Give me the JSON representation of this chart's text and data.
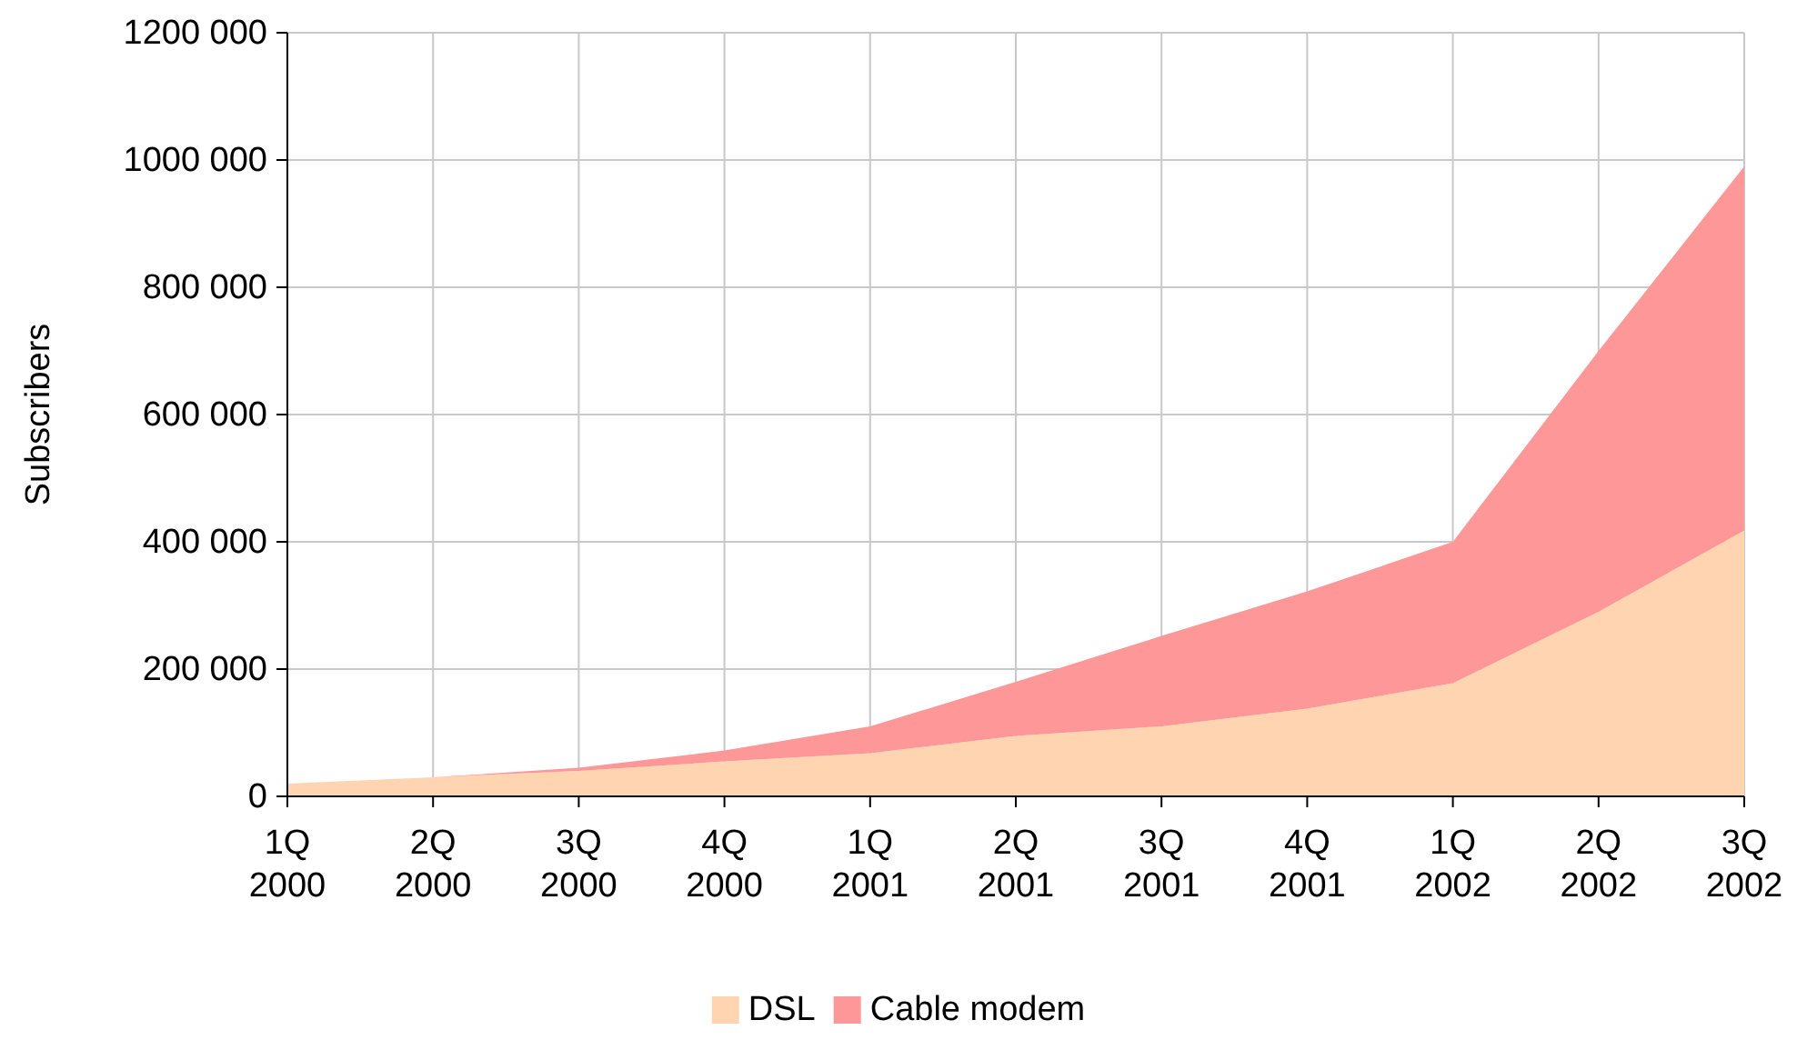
{
  "chart_data": {
    "type": "area",
    "stacked": true,
    "ylabel": "Subscribers",
    "categories": [
      "1Q 2000",
      "2Q 2000",
      "3Q 2000",
      "4Q 2000",
      "1Q 2001",
      "2Q 2001",
      "3Q 2001",
      "4Q 2001",
      "1Q 2002",
      "2Q 2002",
      "3Q 2002"
    ],
    "series": [
      {
        "name": "DSL",
        "color": "#fed5b0",
        "values": [
          20000,
          30000,
          40000,
          55000,
          68000,
          95000,
          110000,
          138000,
          178000,
          290000,
          418000
        ]
      },
      {
        "name": "Cable modem",
        "color": "#fe9797",
        "values": [
          0,
          0,
          5000,
          17000,
          42000,
          85000,
          142000,
          184000,
          222000,
          410000,
          572000
        ]
      }
    ],
    "ylim": [
      0,
      1200000
    ],
    "yticks": [
      0,
      {
        "value": 200000,
        "label": "200 000"
      },
      {
        "value": 400000,
        "label": "400 000"
      },
      {
        "value": 600000,
        "label": "600 000"
      },
      {
        "value": 800000,
        "label": "800 000"
      },
      {
        "value": 1000000,
        "label": "1000 000"
      },
      {
        "value": 1200000,
        "label": "1200 000"
      }
    ],
    "grid": true,
    "legend": "bottom"
  }
}
